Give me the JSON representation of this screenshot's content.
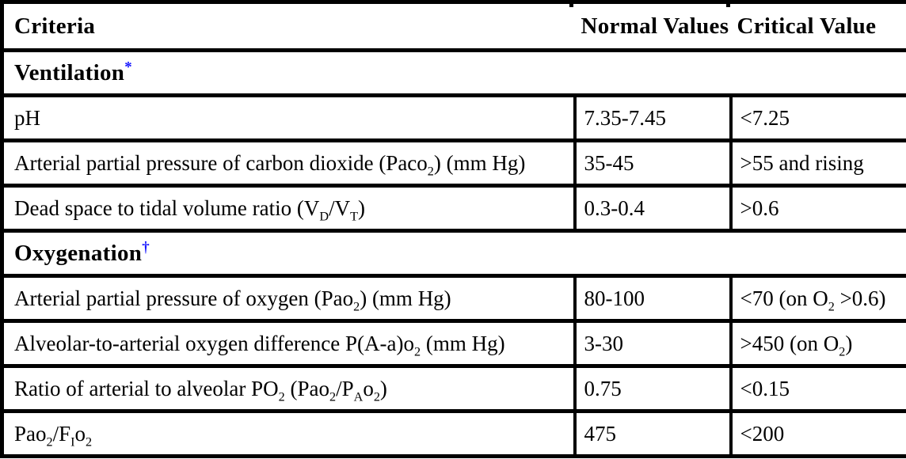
{
  "colors": {
    "border": "#000000",
    "background": "#ffffff",
    "text": "#000000",
    "footnote_marker": "#1414ff"
  },
  "table": {
    "columns": [
      "Criteria",
      "Normal Values",
      "Critical Value"
    ],
    "rows": [
      {
        "type": "section",
        "id": "ventilation",
        "label": [
          [
            "t",
            "Ventilation"
          ],
          [
            "sup",
            "*"
          ]
        ]
      },
      {
        "type": "data",
        "id": "ph",
        "criteria": [
          [
            "t",
            "pH"
          ]
        ],
        "normal": "7.35-7.45",
        "critical": [
          [
            "t",
            "<7.25"
          ]
        ]
      },
      {
        "type": "data",
        "id": "paco2",
        "criteria": [
          [
            "t",
            "Arterial partial pressure of carbon dioxide (Paco"
          ],
          [
            "sub",
            "2"
          ],
          [
            "t",
            ") (mm Hg)"
          ]
        ],
        "normal": "35-45",
        "critical": [
          [
            "t",
            ">55 and rising"
          ]
        ]
      },
      {
        "type": "data",
        "id": "vd-vt-ratio",
        "criteria": [
          [
            "t",
            "Dead space to tidal volume ratio (V"
          ],
          [
            "sub",
            "D"
          ],
          [
            "t",
            "/V"
          ],
          [
            "sub",
            "T"
          ],
          [
            "t",
            ")"
          ]
        ],
        "normal": "0.3-0.4",
        "critical": [
          [
            "t",
            ">0.6"
          ]
        ]
      },
      {
        "type": "section",
        "id": "oxygenation",
        "label": [
          [
            "t",
            "Oxygenation"
          ],
          [
            "sup",
            "†"
          ]
        ]
      },
      {
        "type": "data",
        "id": "pao2",
        "criteria": [
          [
            "t",
            "Arterial partial pressure of oxygen (Pao"
          ],
          [
            "sub",
            "2"
          ],
          [
            "t",
            ") (mm Hg)"
          ]
        ],
        "normal": "80-100",
        "critical": [
          [
            "t",
            "<70 (on O"
          ],
          [
            "sub",
            "2"
          ],
          [
            "t",
            " >0.6)"
          ]
        ]
      },
      {
        "type": "data",
        "id": "a-a-difference",
        "criteria": [
          [
            "t",
            "Alveolar-to-arterial oxygen difference P(A-a)o"
          ],
          [
            "sub",
            "2"
          ],
          [
            "t",
            " (mm Hg)"
          ]
        ],
        "normal": "3-30",
        "critical": [
          [
            "t",
            ">450 (on O"
          ],
          [
            "sub",
            "2"
          ],
          [
            "t",
            ")"
          ]
        ]
      },
      {
        "type": "data",
        "id": "pao2-pao2-ratio",
        "criteria": [
          [
            "t",
            "Ratio of arterial to alveolar PO"
          ],
          [
            "sub",
            "2"
          ],
          [
            "t",
            " (Pao"
          ],
          [
            "sub",
            "2"
          ],
          [
            "t",
            "/P"
          ],
          [
            "sub",
            "A"
          ],
          [
            "t",
            "o"
          ],
          [
            "sub",
            "2"
          ],
          [
            "t",
            ")"
          ]
        ],
        "normal": "0.75",
        "critical": [
          [
            "t",
            "<0.15"
          ]
        ]
      },
      {
        "type": "data",
        "id": "pao2-fio2",
        "criteria": [
          [
            "t",
            "Pao"
          ],
          [
            "sub",
            "2"
          ],
          [
            "t",
            "/F"
          ],
          [
            "sub",
            "I"
          ],
          [
            "t",
            "o"
          ],
          [
            "sub",
            "2"
          ]
        ],
        "normal": "475",
        "critical": [
          [
            "t",
            "<200"
          ]
        ]
      }
    ]
  }
}
